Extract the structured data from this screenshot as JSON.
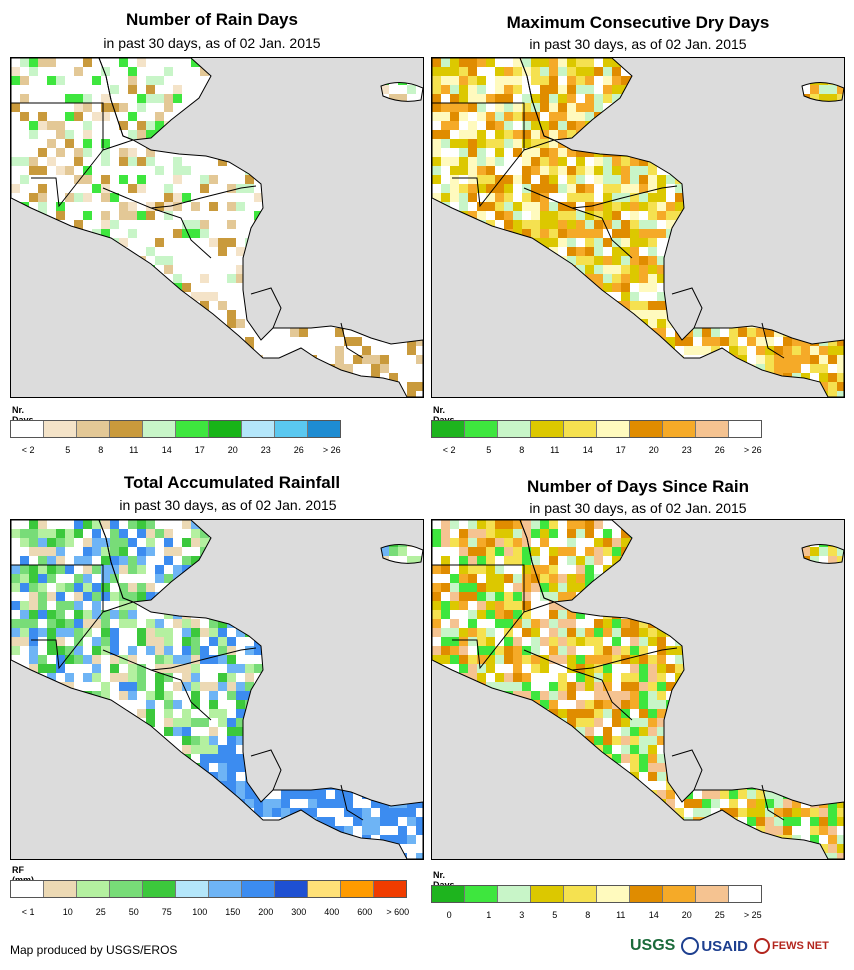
{
  "panels": [
    {
      "title": "Number of Rain Days",
      "subtitle": "in past 30 days, as of 02 Jan. 2015",
      "legend_title": "Nr. Days",
      "legend_colors": [
        "#ffffff",
        "#f4e3c8",
        "#e3c896",
        "#c99a3c",
        "#c8f5c8",
        "#3ee63e",
        "#18b418",
        "#b4e6fa",
        "#5ac8f0",
        "#1e8cd2"
      ],
      "legend_labels": [
        "< 2",
        "5",
        "8",
        "11",
        "14",
        "17",
        "20",
        "23",
        "26",
        "> 26"
      ],
      "palette": [
        "#f4e3c8",
        "#e3c896",
        "#c99a3c",
        "#c8f5c8",
        "#3ee63e"
      ]
    },
    {
      "title": "Maximum Consecutive Dry Days",
      "subtitle": "in past 30 days, as of 02 Jan. 2015",
      "legend_title": "Nr. Days",
      "legend_colors": [
        "#1eb41e",
        "#3ee63e",
        "#c8f5c8",
        "#dcc800",
        "#f5e150",
        "#fffabe",
        "#e08c00",
        "#f5aa28",
        "#f5c391",
        "#ffffff"
      ],
      "legend_labels": [
        "< 2",
        "5",
        "8",
        "11",
        "14",
        "17",
        "20",
        "23",
        "26",
        "> 26"
      ],
      "palette": [
        "#e08c00",
        "#f5aa28",
        "#f5e150",
        "#fffabe",
        "#dcc800",
        "#c8f5c8"
      ]
    },
    {
      "title": "Total Accumulated Rainfall",
      "subtitle": "in past 30 days, as of 02 Jan. 2015",
      "legend_title": "RF (mm)",
      "legend_colors": [
        "#ffffff",
        "#ecd9b4",
        "#b4f0a0",
        "#78dc78",
        "#3cc83c",
        "#b4e6fa",
        "#6eb4f5",
        "#3c8cf0",
        "#1e50d2",
        "#ffe178",
        "#ff9b00",
        "#f03c00"
      ],
      "legend_labels": [
        "< 1",
        "10",
        "25",
        "50",
        "75",
        "100",
        "150",
        "200",
        "300",
        "400",
        "600",
        "> 600"
      ],
      "palette": [
        "#b4f0a0",
        "#78dc78",
        "#ecd9b4",
        "#3cc83c",
        "#3c8cf0",
        "#6eb4f5"
      ]
    },
    {
      "title": "Number of Days Since Rain",
      "subtitle": "in past 30 days, as of 02 Jan. 2015",
      "legend_title": "Nr. Days",
      "legend_colors": [
        "#1eb41e",
        "#3ee63e",
        "#c8f5c8",
        "#dcc800",
        "#f5e150",
        "#fffabe",
        "#e08c00",
        "#f5aa28",
        "#f5c391",
        "#ffffff"
      ],
      "legend_labels": [
        "0",
        "1",
        "3",
        "5",
        "8",
        "11",
        "14",
        "20",
        "25",
        "> 25"
      ],
      "palette": [
        "#f5e150",
        "#dcc800",
        "#e08c00",
        "#f5aa28",
        "#3ee63e",
        "#c8f5c8",
        "#f5c391"
      ]
    }
  ],
  "footer": {
    "credit": "Map produced by USGS/EROS"
  },
  "logos": {
    "usgs": "USGS",
    "usaid": "USAID",
    "fews": "FEWS NET"
  }
}
